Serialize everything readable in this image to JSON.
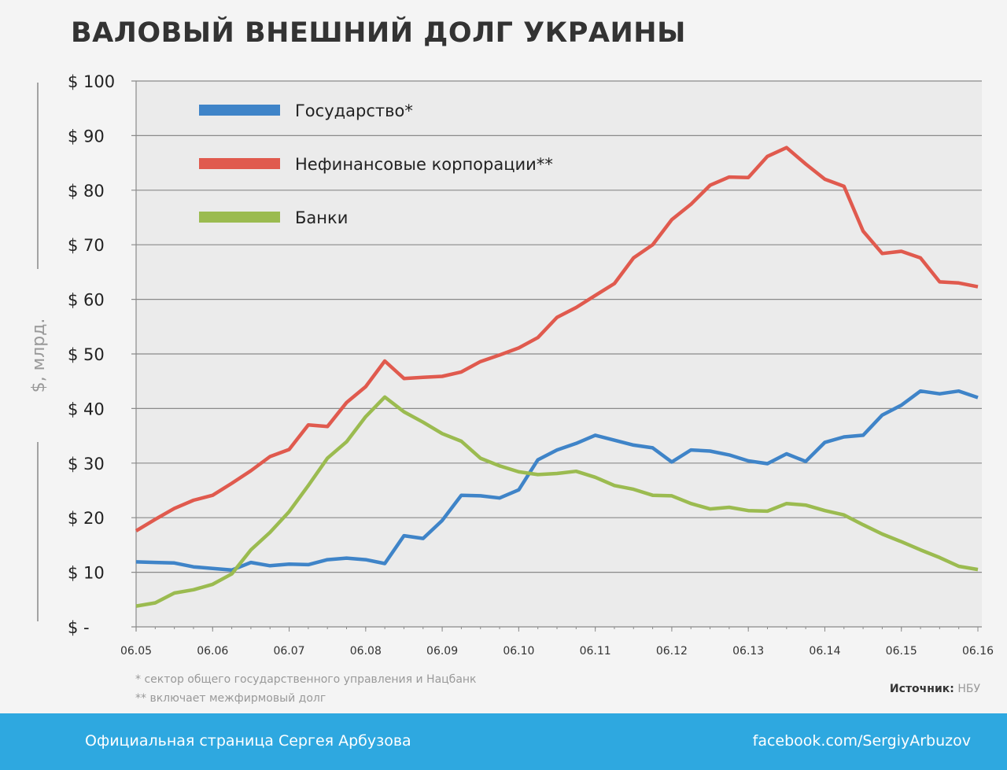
{
  "chart_data": {
    "type": "line",
    "title": "ВАЛОВЫЙ ВНЕШНИЙ ДОЛГ УКРАИНЫ",
    "ylabel": "$, млрд.",
    "ylim": [
      0,
      100
    ],
    "yticks": [
      0,
      10,
      20,
      30,
      40,
      50,
      60,
      70,
      80,
      90,
      100
    ],
    "ytick_labels": [
      "$ -",
      "$ 10",
      "$ 20",
      "$ 30",
      "$ 40",
      "$ 50",
      "$ 60",
      "$ 70",
      "$ 80",
      "$ 90",
      "$ 100"
    ],
    "xtick_labels": [
      "06.05",
      "06.06",
      "06.07",
      "06.08",
      "06.09",
      "06.10",
      "06.11",
      "06.12",
      "06.13",
      "06.14",
      "06.15",
      "06.16"
    ],
    "x_start_year": 2005.0,
    "x_step_years": 0.25,
    "legend_position": "top-left",
    "grid": true,
    "series": [
      {
        "name": "Государство*",
        "color": "#3f84c8",
        "values": [
          11.9,
          11.8,
          11.7,
          11.0,
          10.7,
          10.4,
          11.8,
          11.2,
          11.5,
          11.4,
          12.3,
          12.6,
          12.3,
          11.6,
          16.7,
          16.2,
          19.5,
          24.1,
          24.0,
          23.6,
          25.1,
          30.6,
          32.4,
          33.6,
          35.1,
          34.2,
          33.3,
          32.8,
          30.2,
          32.4,
          32.2,
          31.5,
          30.4,
          29.9,
          31.7,
          30.3,
          33.8,
          34.8,
          35.1,
          38.8,
          40.6,
          43.2,
          42.7,
          43.2,
          42.0
        ]
      },
      {
        "name": "Нефинансовые корпорации**",
        "color": "#e05a4e",
        "values": [
          17.6,
          19.7,
          21.7,
          23.2,
          24.1,
          26.3,
          28.6,
          31.2,
          32.5,
          37.0,
          36.7,
          41.1,
          44.0,
          48.7,
          45.5,
          45.7,
          45.9,
          46.7,
          48.6,
          49.8,
          51.1,
          53.0,
          56.7,
          58.5,
          60.7,
          62.9,
          67.6,
          70.0,
          74.6,
          77.4,
          80.9,
          82.4,
          82.3,
          86.2,
          87.8,
          84.8,
          82.0,
          80.7,
          72.5,
          68.4,
          68.8,
          67.6,
          63.2,
          63.0,
          62.3
        ]
      },
      {
        "name": "Банки",
        "color": "#9bbb50",
        "values": [
          3.8,
          4.4,
          6.2,
          6.8,
          7.8,
          9.7,
          14.1,
          17.3,
          21.1,
          25.9,
          30.9,
          33.9,
          38.5,
          42.1,
          39.4,
          37.5,
          35.4,
          34.0,
          30.9,
          29.5,
          28.4,
          27.9,
          28.1,
          28.5,
          27.4,
          25.9,
          25.2,
          24.1,
          24.0,
          22.6,
          21.6,
          21.9,
          21.3,
          21.2,
          22.6,
          22.3,
          21.3,
          20.5,
          18.7,
          17.0,
          15.6,
          14.1,
          12.7,
          11.1,
          10.5
        ]
      }
    ]
  },
  "notes": [
    "* сектор общего государственного управления и Нацбанк",
    "** включает межфирмовый долг"
  ],
  "source": {
    "label": "Источник:",
    "value": "НБУ"
  },
  "footer": {
    "left": "Официальная страница Сергея Арбузова",
    "right": "facebook.com/SergiyArbuzov"
  }
}
